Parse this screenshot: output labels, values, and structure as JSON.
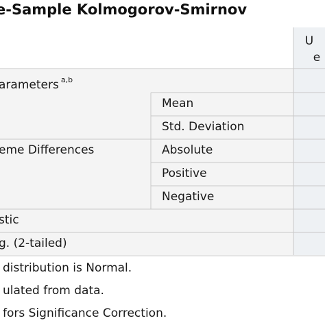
{
  "table": {
    "title": "e-Sample Kolmogorov-Smirnov",
    "column_header": [
      "U",
      "e"
    ],
    "rows": [
      {
        "group": "arameters",
        "group_note": "a,b",
        "label": "Mean"
      },
      {
        "label": "Std. Deviation"
      },
      {
        "group": "eme Differences",
        "label": "Absolute"
      },
      {
        "label": "Positive"
      },
      {
        "label": "Negative"
      },
      {
        "group": "stic"
      },
      {
        "group": "g. (2-tailed)"
      }
    ],
    "footnotes": [
      "distribution is Normal.",
      "ulated from data.",
      "fors Significance Correction."
    ]
  }
}
